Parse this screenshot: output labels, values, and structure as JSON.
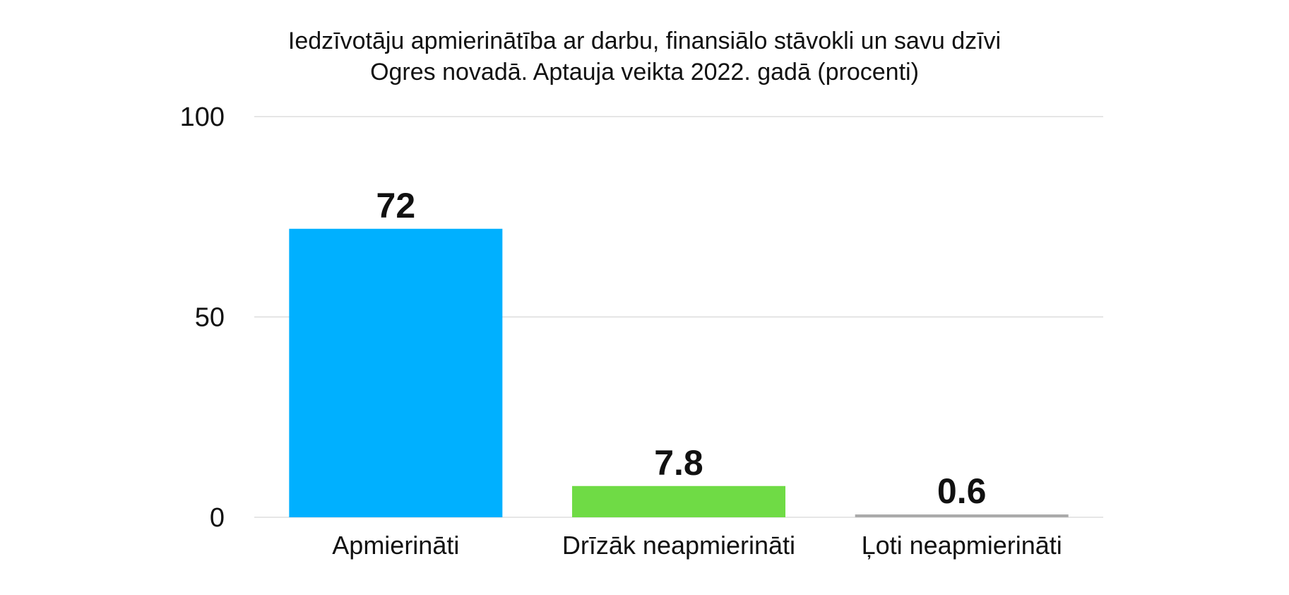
{
  "chart_data": {
    "type": "bar",
    "title_line1": "Iedzīvotāju apmierinātība ar darbu, finansiālo stāvokli un savu dzīvi",
    "title_line2": "Ogres novadā. Aptauja veikta 2022. gadā (procenti)",
    "categories": [
      "Apmierināti",
      "Drīzāk neapmierināti",
      "Ļoti neapmierināti"
    ],
    "values": [
      72,
      7.8,
      0.6
    ],
    "value_labels": [
      "72",
      "7.8",
      "0.6"
    ],
    "colors": [
      "#00B0FF",
      "#6FDB45",
      "#AAAAAA"
    ],
    "ylim": [
      0,
      100
    ],
    "yticks": [
      0,
      50,
      100
    ],
    "ytick_labels": [
      "0",
      "50",
      "100"
    ],
    "grid": true,
    "legend": "none",
    "xlabel": "",
    "ylabel": ""
  }
}
